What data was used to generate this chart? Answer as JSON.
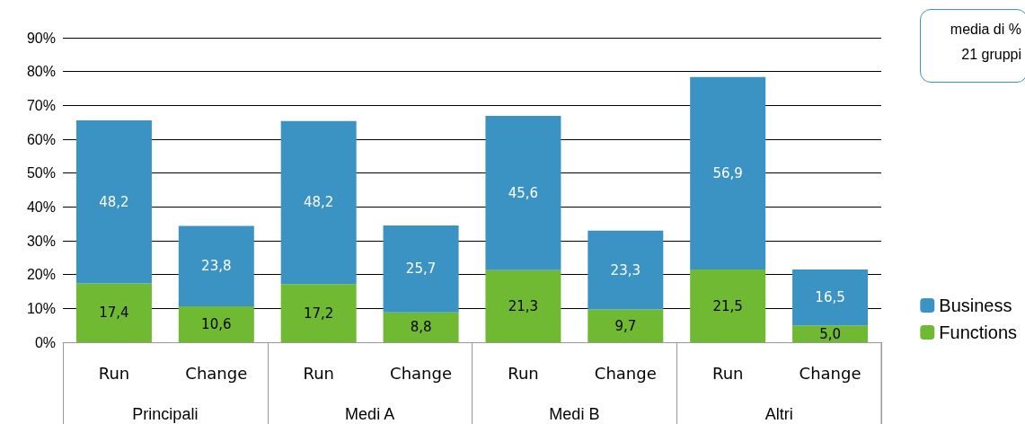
{
  "chart_data": {
    "type": "bar",
    "stacked": true,
    "categories": [
      "Run",
      "Change",
      "Run",
      "Change",
      "Run",
      "Change",
      "Run",
      "Change"
    ],
    "series": [
      {
        "name": "Functions",
        "color": "#70b933",
        "values": [
          17.4,
          10.6,
          17.2,
          8.8,
          21.3,
          9.7,
          21.5,
          5.0
        ],
        "value_labels": [
          "17,4",
          "10,6",
          "17,2",
          "8,8",
          "21,3",
          "9,7",
          "21,5",
          "5,0"
        ]
      },
      {
        "name": "Business",
        "color": "#3a93c3",
        "values": [
          48.2,
          23.8,
          48.2,
          25.7,
          45.6,
          23.3,
          56.9,
          16.5
        ],
        "value_labels": [
          "48,2",
          "23,8",
          "48,2",
          "25,7",
          "45,6",
          "23,3",
          "56,9",
          "16,5"
        ]
      }
    ],
    "ylim": [
      0,
      90
    ],
    "yticks": [
      {
        "value": 0,
        "label": "0%"
      },
      {
        "value": 10,
        "label": "10%"
      },
      {
        "value": 20,
        "label": "20%"
      },
      {
        "value": 30,
        "label": "30%"
      },
      {
        "value": 40,
        "label": "40%"
      },
      {
        "value": 50,
        "label": "50%"
      },
      {
        "value": 60,
        "label": "60%"
      },
      {
        "value": 70,
        "label": "70%"
      },
      {
        "value": 80,
        "label": "80%"
      },
      {
        "value": 90,
        "label": "90%"
      }
    ],
    "grid": "y",
    "legend": "bottom right",
    "annotations": [
      "media di %",
      "21 gruppi",
      "Principali",
      "Medi A",
      "Medi B",
      "Altri"
    ]
  }
}
